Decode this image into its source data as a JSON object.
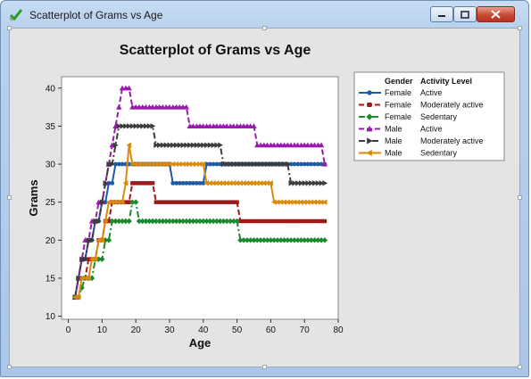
{
  "window": {
    "title": "Scatterplot of Grams vs Age"
  },
  "chart_data": {
    "type": "scatter",
    "title": "Scatterplot of Grams vs Age",
    "xlabel": "Age",
    "ylabel": "Grams",
    "xlim": [
      -2,
      80
    ],
    "ylim": [
      9.6,
      41.5
    ],
    "xticks": [
      0,
      10,
      20,
      30,
      40,
      50,
      60,
      70,
      80
    ],
    "yticks": [
      10,
      15,
      20,
      25,
      30,
      35,
      40
    ],
    "grid": false,
    "legend_position": "right",
    "legend_headers": [
      "Gender",
      "Activity Level"
    ],
    "series": [
      {
        "gender": "Female",
        "activity": "Active",
        "color": "#1f5aa6",
        "marker": "circle",
        "linestyle": "solid",
        "points": [
          [
            2,
            12.5
          ],
          [
            3,
            15
          ],
          [
            4,
            17.5
          ],
          [
            5,
            17.5
          ],
          [
            6,
            20
          ],
          [
            7,
            20
          ],
          [
            8,
            22.5
          ],
          [
            9,
            22.5
          ],
          [
            10,
            25
          ],
          [
            11,
            25
          ],
          [
            12,
            27.5
          ],
          [
            13,
            27.5
          ],
          [
            14,
            30
          ],
          [
            30,
            30
          ],
          [
            31,
            27.5
          ],
          [
            40,
            27.5
          ],
          [
            41,
            30
          ],
          [
            76,
            30
          ]
        ]
      },
      {
        "gender": "Female",
        "activity": "Moderately active",
        "color": "#a01818",
        "marker": "square",
        "linestyle": "dash",
        "points": [
          [
            2,
            12.5
          ],
          [
            3,
            15
          ],
          [
            5,
            15
          ],
          [
            6,
            17.5
          ],
          [
            8,
            17.5
          ],
          [
            9,
            20
          ],
          [
            10,
            20
          ],
          [
            11,
            22.5
          ],
          [
            12,
            22.5
          ],
          [
            13,
            25
          ],
          [
            18,
            25
          ],
          [
            19,
            27.5
          ],
          [
            25,
            27.5
          ],
          [
            26,
            25
          ],
          [
            50,
            25
          ],
          [
            51,
            22.5
          ],
          [
            76,
            22.5
          ]
        ]
      },
      {
        "gender": "Female",
        "activity": "Sedentary",
        "color": "#1a8a2e",
        "marker": "diamond",
        "linestyle": "dashdot",
        "points": [
          [
            2,
            12.5
          ],
          [
            3,
            12.5
          ],
          [
            5,
            15
          ],
          [
            7,
            15
          ],
          [
            8,
            17.5
          ],
          [
            10,
            17.5
          ],
          [
            11,
            20
          ],
          [
            12,
            20
          ],
          [
            13,
            22.5
          ],
          [
            18,
            22.5
          ],
          [
            19,
            25
          ],
          [
            20,
            25
          ],
          [
            21,
            22.5
          ],
          [
            50,
            22.5
          ],
          [
            51,
            20
          ],
          [
            76,
            20
          ]
        ]
      },
      {
        "gender": "Male",
        "activity": "Active",
        "color": "#9a1ab0",
        "marker": "triangle-up",
        "linestyle": "dash",
        "points": [
          [
            2,
            12.5
          ],
          [
            3,
            15
          ],
          [
            4,
            17.5
          ],
          [
            5,
            20
          ],
          [
            6,
            20
          ],
          [
            7,
            22.5
          ],
          [
            8,
            22.5
          ],
          [
            9,
            25
          ],
          [
            10,
            25
          ],
          [
            11,
            27.5
          ],
          [
            12,
            30
          ],
          [
            13,
            32.5
          ],
          [
            14,
            35
          ],
          [
            15,
            37.5
          ],
          [
            16,
            40
          ],
          [
            18,
            40
          ],
          [
            19,
            37.5
          ],
          [
            35,
            37.5
          ],
          [
            36,
            35
          ],
          [
            55,
            35
          ],
          [
            56,
            32.5
          ],
          [
            75,
            32.5
          ],
          [
            76,
            30
          ]
        ]
      },
      {
        "gender": "Male",
        "activity": "Moderately active",
        "color": "#3c3c3c",
        "marker": "triangle-right",
        "linestyle": "dashdot",
        "points": [
          [
            2,
            12.5
          ],
          [
            3,
            15
          ],
          [
            4,
            17.5
          ],
          [
            5,
            17.5
          ],
          [
            6,
            20
          ],
          [
            7,
            20
          ],
          [
            8,
            22.5
          ],
          [
            9,
            22.5
          ],
          [
            10,
            25
          ],
          [
            11,
            27.5
          ],
          [
            12,
            30
          ],
          [
            13,
            30
          ],
          [
            14,
            32.5
          ],
          [
            15,
            35
          ],
          [
            25,
            35
          ],
          [
            26,
            32.5
          ],
          [
            45,
            32.5
          ],
          [
            46,
            30
          ],
          [
            65,
            30
          ],
          [
            66,
            27.5
          ],
          [
            76,
            27.5
          ]
        ]
      },
      {
        "gender": "Male",
        "activity": "Sedentary",
        "color": "#d98a0e",
        "marker": "triangle-left",
        "linestyle": "solid",
        "points": [
          [
            2,
            12.5
          ],
          [
            3,
            12.5
          ],
          [
            4,
            15
          ],
          [
            6,
            15
          ],
          [
            7,
            17.5
          ],
          [
            8,
            17.5
          ],
          [
            9,
            20
          ],
          [
            10,
            20
          ],
          [
            11,
            22.5
          ],
          [
            12,
            25
          ],
          [
            16,
            25
          ],
          [
            17,
            27.5
          ],
          [
            18,
            32.5
          ],
          [
            19,
            30
          ],
          [
            40,
            30
          ],
          [
            41,
            27.5
          ],
          [
            60,
            27.5
          ],
          [
            61,
            25
          ],
          [
            76,
            25
          ]
        ]
      }
    ]
  }
}
